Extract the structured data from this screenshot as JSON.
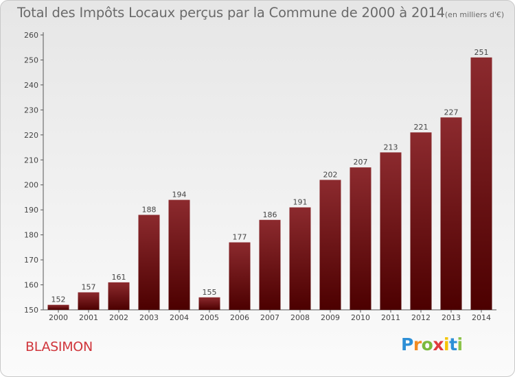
{
  "chart_data": {
    "type": "bar",
    "title": "Total des Impôts Locaux perçus par la Commune de 2000 à 2014",
    "title_unit": "(en milliers d'€)",
    "categories": [
      "2000",
      "2001",
      "2002",
      "2003",
      "2004",
      "2005",
      "2006",
      "2007",
      "2008",
      "2009",
      "2010",
      "2011",
      "2012",
      "2013",
      "2014"
    ],
    "values": [
      152,
      157,
      161,
      188,
      194,
      155,
      177,
      186,
      191,
      202,
      207,
      213,
      221,
      227,
      251
    ],
    "ylim": [
      150,
      260
    ],
    "yticks": [
      150,
      160,
      170,
      180,
      190,
      200,
      210,
      220,
      230,
      240,
      250,
      260
    ],
    "xlabel": "",
    "ylabel": "",
    "grid": false,
    "bar_color_top": "#8c2a2e",
    "bar_color_bottom": "#4c0000"
  },
  "commune": "BLASIMON",
  "logo": {
    "letters": [
      "P",
      "r",
      "o",
      "x",
      "i",
      "t",
      "i"
    ],
    "colors": [
      "#2d8fd6",
      "#f28b22",
      "#7ab93c",
      "#e03a3e",
      "#f4c400",
      "#2d8fd6",
      "#8bc34a"
    ]
  }
}
